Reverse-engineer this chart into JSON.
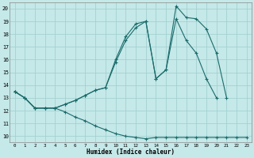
{
  "xlabel": "Humidex (Indice chaleur)",
  "xlim": [
    -0.5,
    23.5
  ],
  "ylim": [
    9.5,
    20.5
  ],
  "xticks": [
    0,
    1,
    2,
    3,
    4,
    5,
    6,
    7,
    8,
    9,
    10,
    11,
    12,
    13,
    14,
    15,
    16,
    17,
    18,
    19,
    20,
    21,
    22,
    23
  ],
  "yticks": [
    10,
    11,
    12,
    13,
    14,
    15,
    16,
    17,
    18,
    19,
    20
  ],
  "background_color": "#c5e8e8",
  "grid_color": "#9ecece",
  "line_color": "#1a6b6b",
  "line1_x": [
    0,
    1,
    2,
    3,
    4,
    5,
    6,
    7,
    8,
    9,
    10,
    11,
    12,
    13,
    14,
    15,
    16,
    17,
    18,
    19,
    20,
    21
  ],
  "line1_y": [
    13.5,
    13.0,
    12.2,
    12.2,
    12.2,
    12.5,
    12.8,
    13.2,
    13.6,
    13.8,
    16.0,
    17.8,
    18.8,
    19.0,
    14.5,
    15.2,
    20.2,
    19.3,
    19.2,
    18.4,
    16.5,
    13.0
  ],
  "line2_x": [
    0,
    1,
    2,
    3,
    4,
    5,
    6,
    7,
    8,
    9,
    10,
    11,
    12,
    13,
    14,
    15,
    16,
    17,
    18,
    19,
    20
  ],
  "line2_y": [
    13.5,
    13.0,
    12.2,
    12.2,
    12.2,
    12.5,
    12.8,
    13.2,
    13.6,
    13.8,
    15.8,
    17.5,
    18.5,
    19.0,
    14.5,
    15.2,
    19.2,
    17.5,
    16.5,
    14.5,
    13.0
  ],
  "line3_x": [
    0,
    1,
    2,
    3,
    4,
    5,
    6,
    7,
    8,
    9,
    10,
    11,
    12,
    13,
    14,
    15,
    16,
    17,
    18,
    19,
    20,
    21,
    22,
    23
  ],
  "line3_y": [
    13.5,
    13.0,
    12.2,
    12.2,
    12.2,
    11.9,
    11.5,
    11.2,
    10.8,
    10.5,
    10.2,
    10.0,
    9.9,
    9.8,
    9.9,
    9.9,
    9.9,
    9.9,
    9.9,
    9.9,
    9.9,
    9.9,
    9.9,
    9.9
  ]
}
